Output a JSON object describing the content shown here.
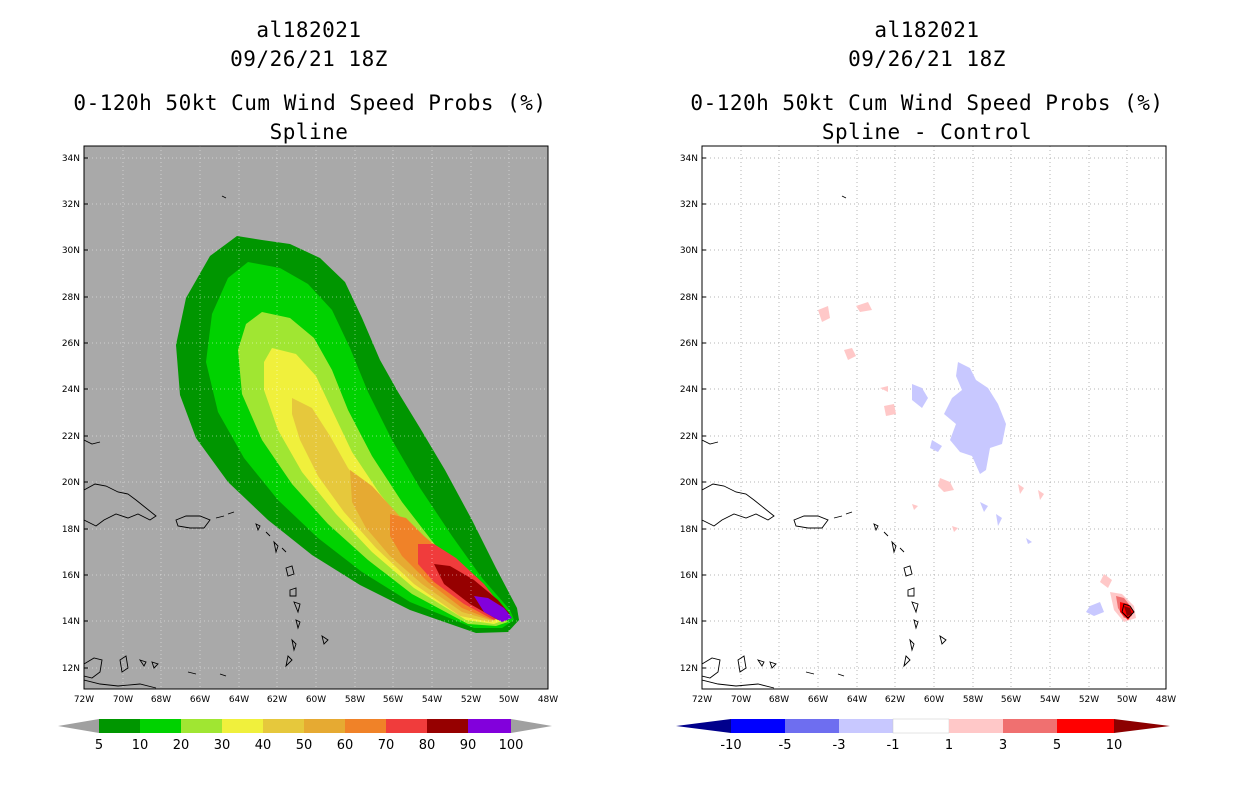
{
  "left_panel": {
    "title_line1": "al182021",
    "title_line2": "09/26/21 18Z",
    "title_line3": "0-120h 50kt Cum Wind Speed Probs (%)",
    "title_line4": "Spline",
    "lat_labels": [
      "34N",
      "32N",
      "30N",
      "28N",
      "26N",
      "24N",
      "22N",
      "20N",
      "18N",
      "16N",
      "14N",
      "12N"
    ],
    "lon_labels": [
      "72W",
      "70W",
      "68W",
      "66W",
      "64W",
      "62W",
      "60W",
      "58W",
      "56W",
      "54W",
      "52W",
      "50W",
      "48W"
    ],
    "colorbar": {
      "labels": [
        "5",
        "10",
        "20",
        "30",
        "40",
        "50",
        "60",
        "70",
        "80",
        "90",
        "100"
      ],
      "colors": [
        "#a0a0a0",
        "#009600",
        "#00d200",
        "#a0e632",
        "#f0f03c",
        "#e6c83c",
        "#e6aa32",
        "#f08228",
        "#f03c3c",
        "#960000",
        "#8200dc",
        "#a0a0a0"
      ]
    },
    "background_color": "#a9a9a9"
  },
  "right_panel": {
    "title_line1": "al182021",
    "title_line2": "09/26/21 18Z",
    "title_line3": "0-120h 50kt Cum Wind Speed Probs (%)",
    "title_line4": "Spline - Control",
    "lat_labels": [
      "34N",
      "32N",
      "30N",
      "28N",
      "26N",
      "24N",
      "22N",
      "20N",
      "18N",
      "16N",
      "14N",
      "12N"
    ],
    "lon_labels": [
      "72W",
      "70W",
      "68W",
      "66W",
      "64W",
      "62W",
      "60W",
      "58W",
      "56W",
      "54W",
      "52W",
      "50W",
      "48W"
    ],
    "colorbar": {
      "labels": [
        "-10",
        "-5",
        "-3",
        "-1",
        "1",
        "3",
        "5",
        "10"
      ],
      "colors": [
        "#00008c",
        "#0000ff",
        "#6e6ef0",
        "#c8c8ff",
        "#ffffff",
        "#ffc8c8",
        "#f07070",
        "#ff0000",
        "#8c0000"
      ]
    },
    "background_color": "#ffffff"
  }
}
